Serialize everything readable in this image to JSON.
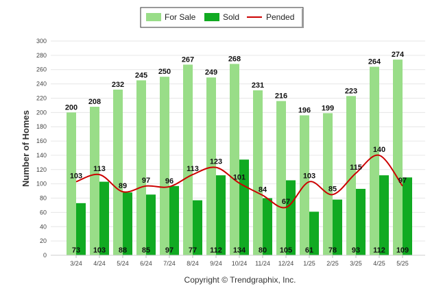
{
  "chart_data": {
    "type": "bar",
    "ylabel": "Number of Homes",
    "ylim": [
      0,
      300
    ],
    "yticks": [
      0,
      20,
      40,
      60,
      80,
      100,
      120,
      140,
      160,
      180,
      200,
      220,
      240,
      260,
      280,
      300
    ],
    "categories": [
      "3/24",
      "4/24",
      "5/24",
      "6/24",
      "7/24",
      "8/24",
      "9/24",
      "10/24",
      "11/24",
      "12/24",
      "1/25",
      "2/25",
      "3/25",
      "4/25",
      "5/25"
    ],
    "series": [
      {
        "name": "For Sale",
        "kind": "bar",
        "color": "#99dd88",
        "values": [
          200,
          208,
          232,
          245,
          250,
          267,
          249,
          268,
          231,
          216,
          196,
          199,
          223,
          264,
          274
        ]
      },
      {
        "name": "Sold",
        "kind": "bar",
        "color": "#11aa22",
        "values": [
          73,
          103,
          88,
          85,
          97,
          77,
          112,
          134,
          80,
          105,
          61,
          78,
          93,
          112,
          109
        ]
      },
      {
        "name": "Pended",
        "kind": "line",
        "color": "#cc0000",
        "values": [
          103,
          113,
          89,
          97,
          96,
          113,
          123,
          101,
          84,
          67,
          103,
          85,
          115,
          140,
          97
        ]
      }
    ],
    "grid": true,
    "legend_position": "top-center"
  },
  "footer": {
    "copyright": "Copyright © Trendgraphix, Inc."
  }
}
